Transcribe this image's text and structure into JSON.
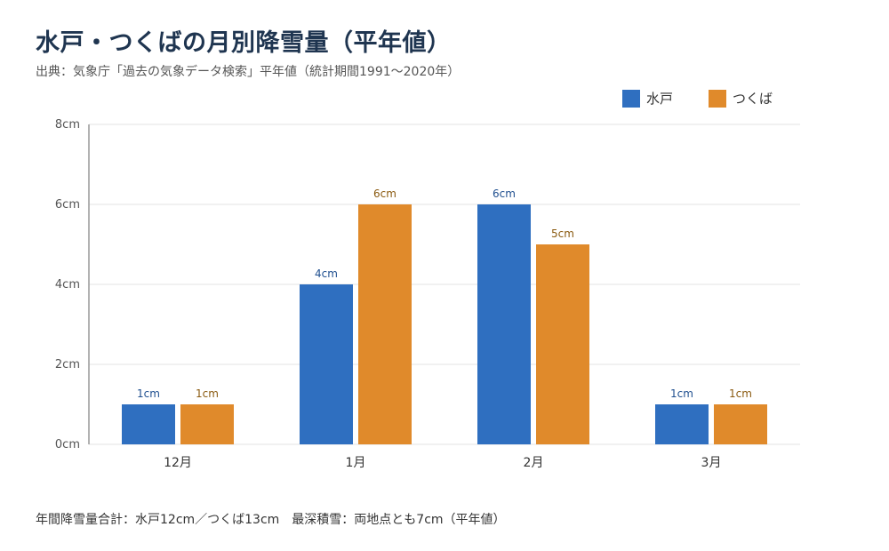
{
  "title": "水戸・つくばの月別降雪量（平年値）",
  "subtitle": "出典：気象庁「過去の気象データ検索」平年値（統計期間1991〜2020年）",
  "footer": "年間降雪量合計：水戸12cm／つくば13cm　最深積雪：両地点とも7cm（平年値）",
  "colors": {
    "mito": "#2f6fc0",
    "tsukuba": "#e08a2b",
    "mito_label": "#1f4f8f",
    "tsukuba_label": "#8a5a10"
  },
  "chart_data": {
    "type": "bar",
    "categories": [
      "12月",
      "1月",
      "2月",
      "3月"
    ],
    "series": [
      {
        "name": "水戸",
        "values": [
          1,
          4,
          6,
          1
        ],
        "labels": [
          "1cm",
          "4cm",
          "6cm",
          "1cm"
        ]
      },
      {
        "name": "つくば",
        "values": [
          1,
          6,
          5,
          1
        ],
        "labels": [
          "1cm",
          "6cm",
          "5cm",
          "1cm"
        ]
      }
    ],
    "ylim": [
      0,
      8
    ],
    "yticks": [
      0,
      2,
      4,
      6,
      8
    ],
    "ytick_labels": [
      "0cm",
      "2cm",
      "4cm",
      "6cm",
      "8cm"
    ],
    "grid": true,
    "legend_position": "top-right"
  }
}
